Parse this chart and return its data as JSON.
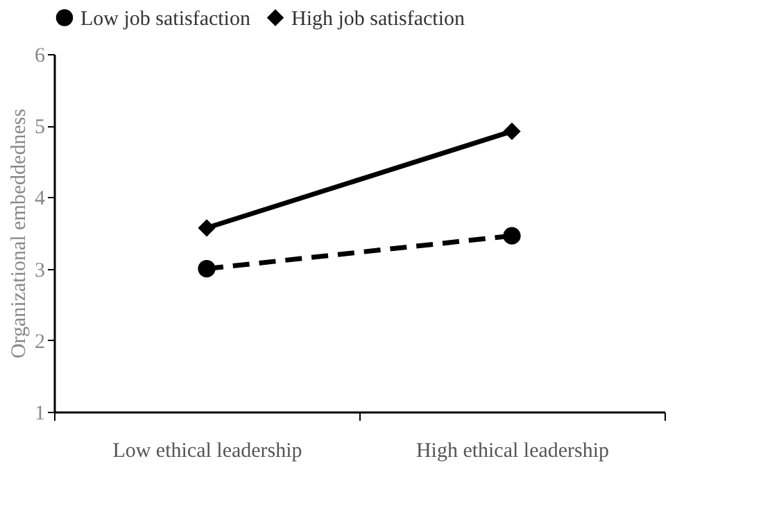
{
  "chart_data": {
    "type": "line",
    "ylabel": "Organizational embeddedness",
    "categories": [
      "Low ethical leadership",
      "High ethical leadership"
    ],
    "ylim": [
      1,
      6
    ],
    "yticks": [
      1,
      2,
      3,
      4,
      5,
      6
    ],
    "grid": false,
    "legend": "top",
    "series": [
      {
        "name": "Low job satisfaction",
        "color": "#000000",
        "values": [
          3.0,
          3.46
        ],
        "marker": "circle",
        "line_style": "dashed"
      },
      {
        "name": "High job satisfaction",
        "color": "#000000",
        "values": [
          3.57,
          4.92
        ],
        "marker": "diamond",
        "line_style": "solid"
      }
    ]
  }
}
